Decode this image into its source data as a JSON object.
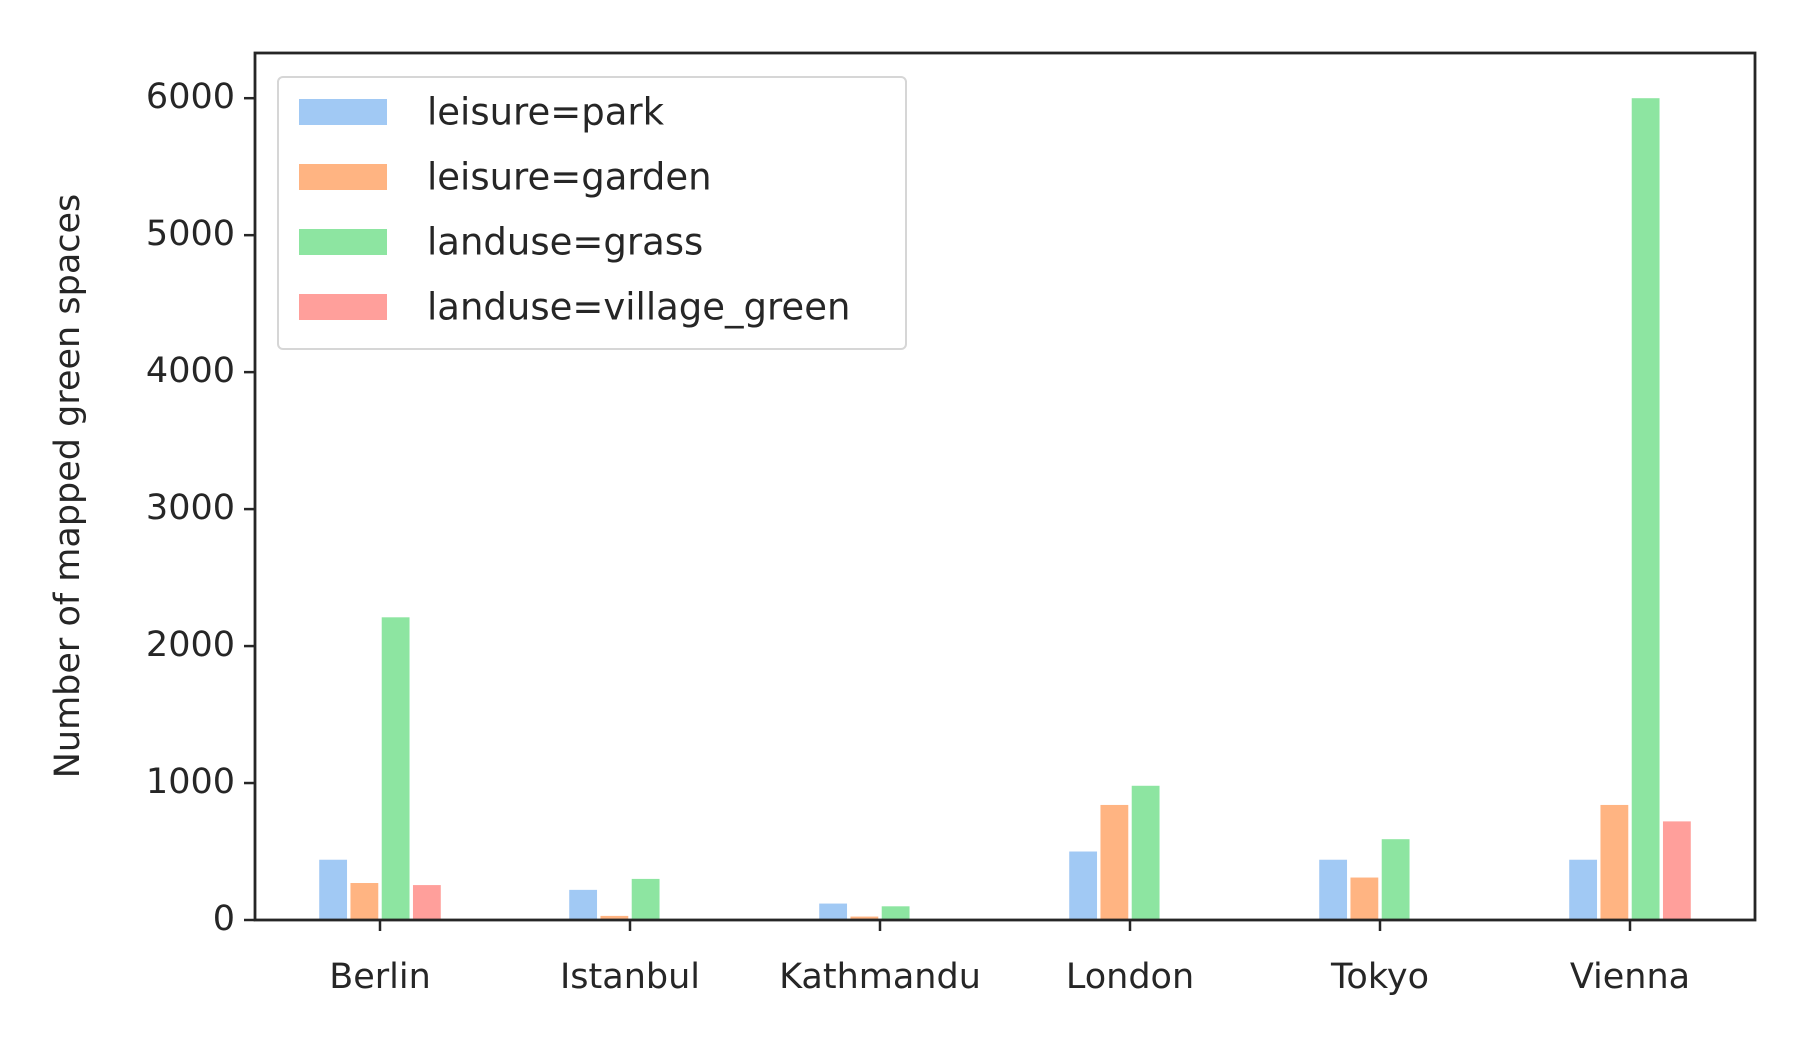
{
  "chart_data": {
    "type": "bar",
    "ylabel": "Number of mapped green spaces",
    "categories": [
      "Berlin",
      "Istanbul",
      "Kathmandu",
      "London",
      "Tokyo",
      "Vienna"
    ],
    "series": [
      {
        "name": "leisure=park",
        "color": "#a1c9f4",
        "values": [
          440,
          220,
          120,
          500,
          440,
          440
        ]
      },
      {
        "name": "leisure=garden",
        "color": "#ffb482",
        "values": [
          270,
          30,
          25,
          840,
          310,
          840
        ]
      },
      {
        "name": "landuse=grass",
        "color": "#8de5a1",
        "values": [
          2210,
          300,
          100,
          980,
          590,
          6000
        ]
      },
      {
        "name": "landuse=village_green",
        "color": "#ff9f9b",
        "values": [
          255,
          0,
          0,
          0,
          0,
          720
        ]
      }
    ],
    "ylim": [
      0,
      6330
    ],
    "yticks": [
      0,
      1000,
      2000,
      3000,
      4000,
      5000,
      6000
    ],
    "legend": "upper-left"
  }
}
